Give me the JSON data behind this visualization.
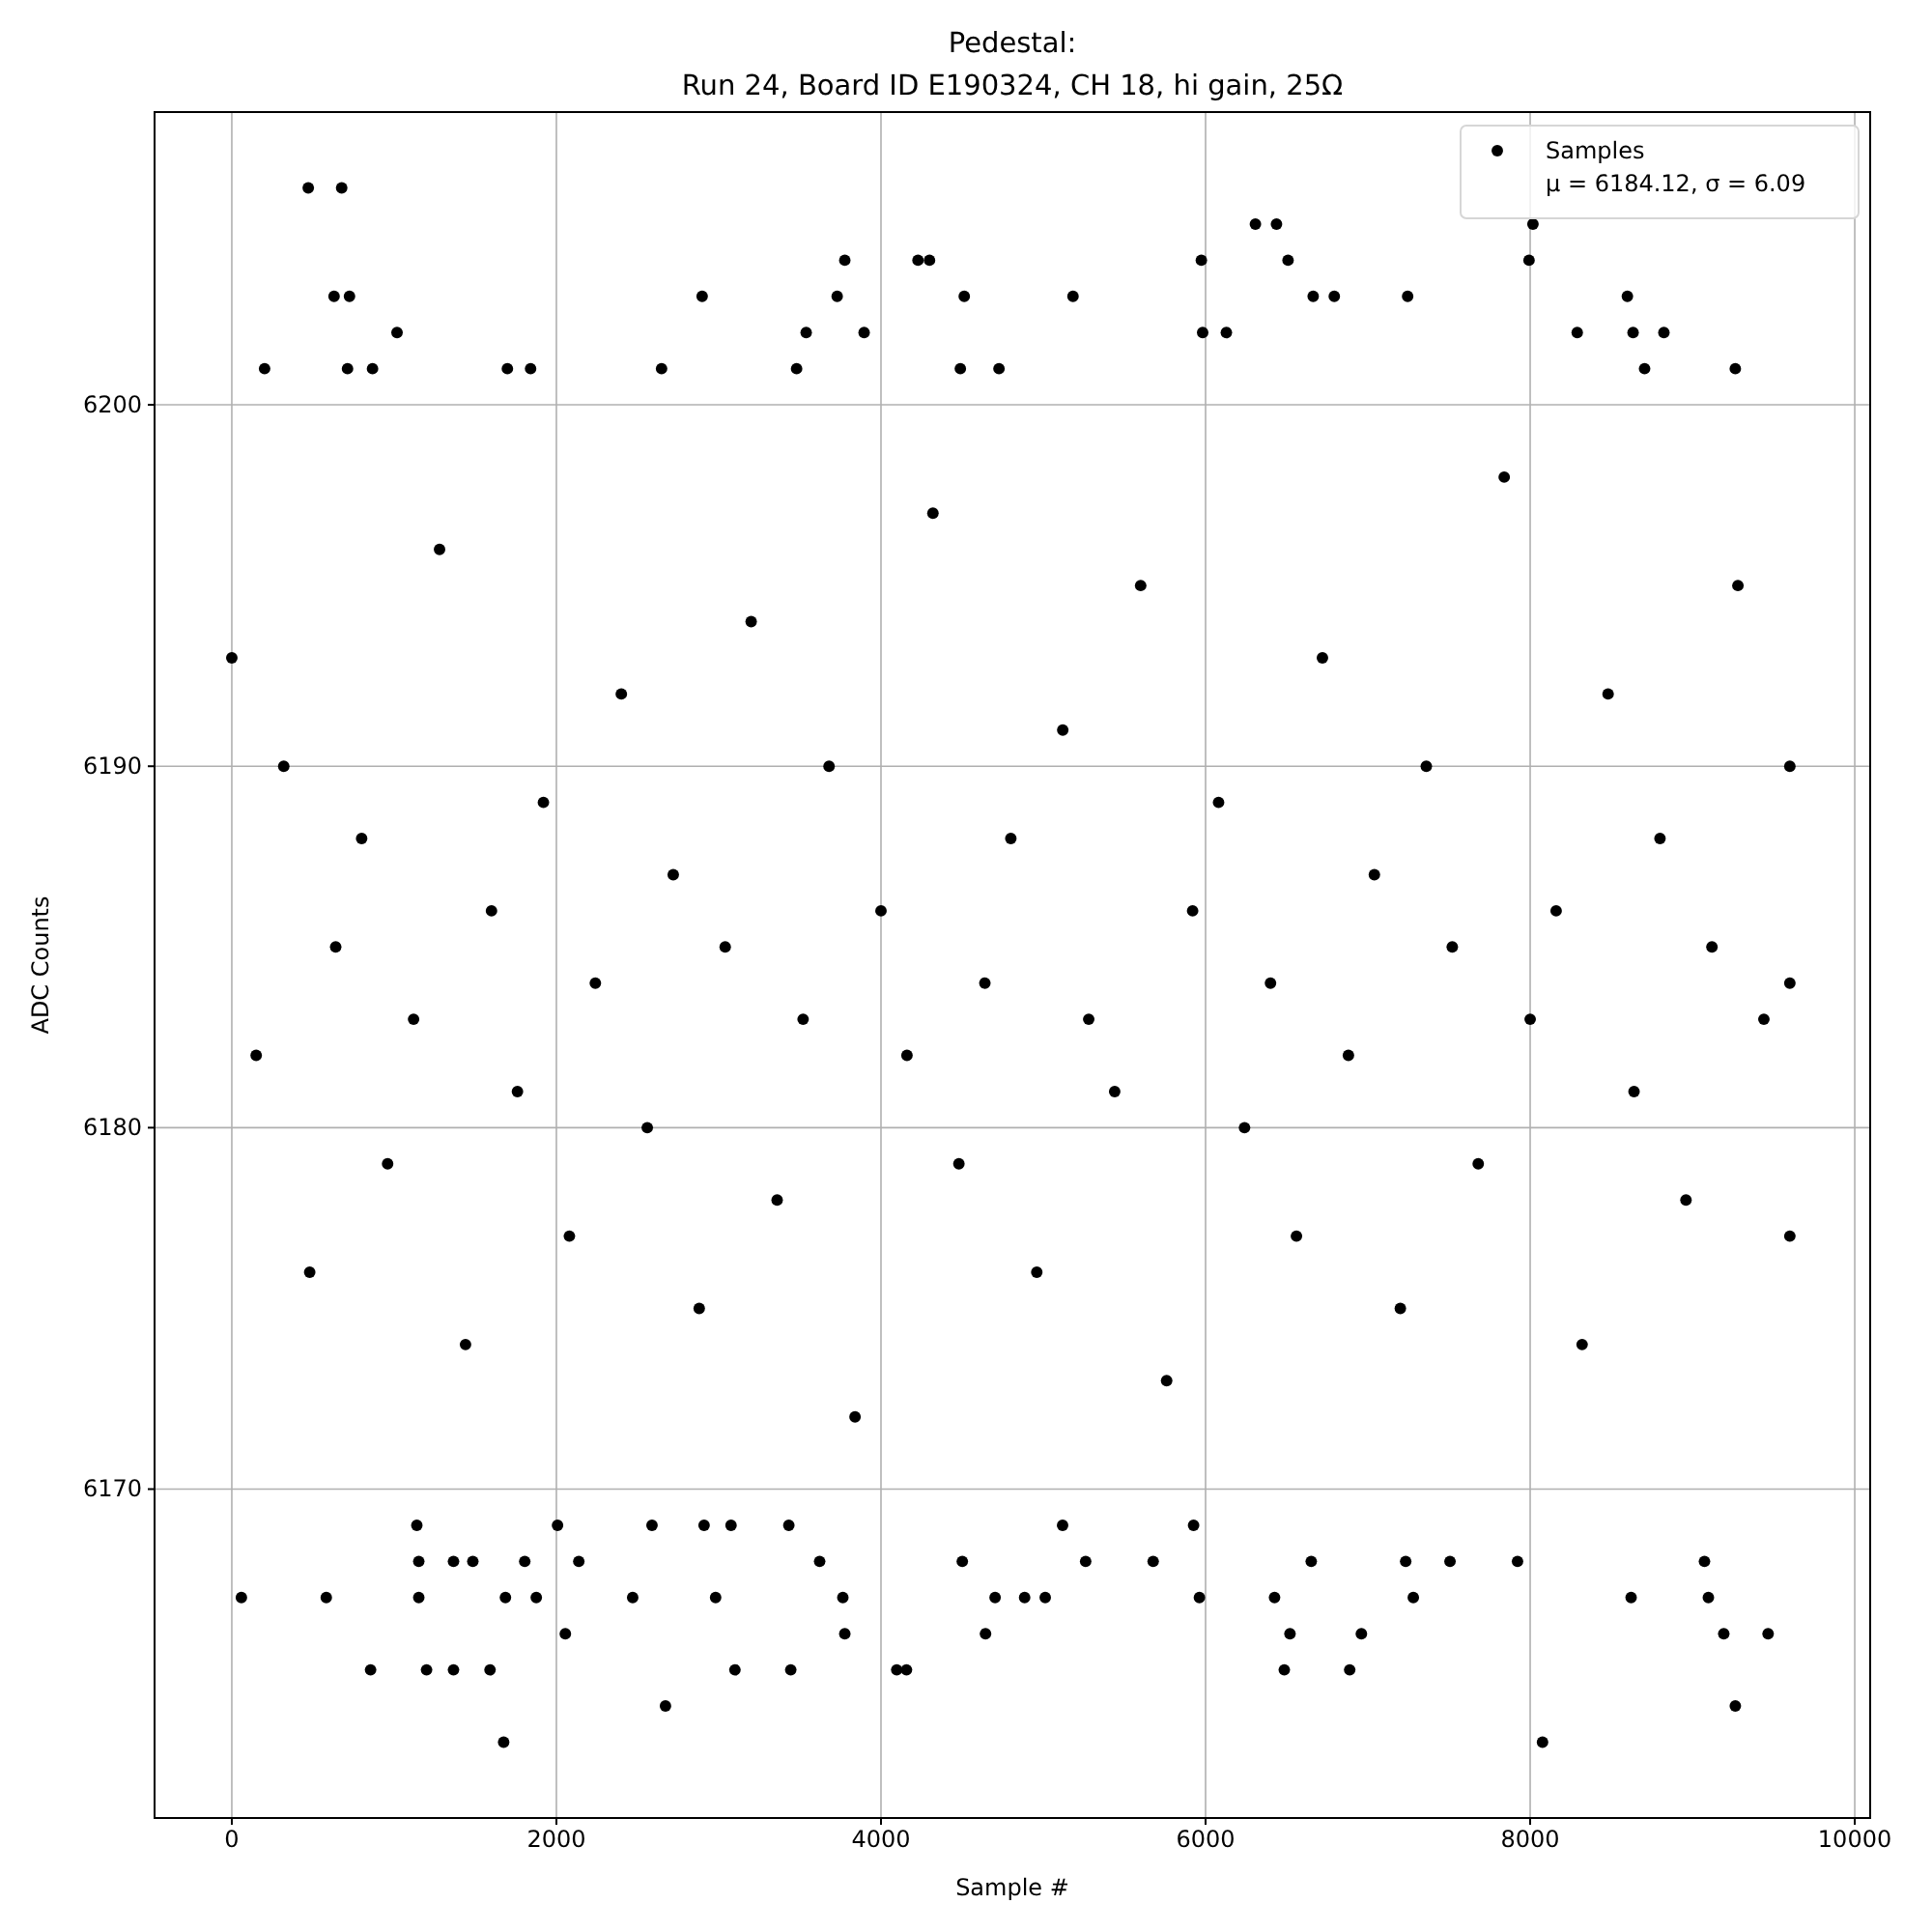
{
  "chart_data": {
    "type": "scatter",
    "title": "Pedestal:",
    "subtitle": "Run 24, Board ID E190324, CH 18, hi gain, 25Ω",
    "xlabel": "Sample #",
    "ylabel": "ADC Counts",
    "annotations": [
      "μ = 6184.12, σ = 6.09"
    ],
    "xlim": [
      -476,
      10095
    ],
    "ylim": [
      6160.9,
      6208.1
    ],
    "xticks": [
      0,
      2000,
      4000,
      6000,
      8000,
      10000
    ],
    "yticks": [
      6170,
      6180,
      6190,
      6200
    ],
    "grid": true,
    "legend": "top right",
    "marker": "circle",
    "series": [
      {
        "name": "Samples",
        "color": "#000000",
        "x": [
          471,
          677,
          630,
          725,
          2898,
          3730,
          3777,
          4228,
          4299,
          4513,
          1018,
          3539,
          3896,
          202,
          713,
          867,
          1698,
          1841,
          2648,
          3480,
          4489,
          4727,
          6307,
          6437,
          8017,
          5974,
          6508,
          7993,
          5183,
          6663,
          6793,
          7245,
          8599,
          5982,
          6128,
          8290,
          8634,
          8824,
          8705,
          9264,
          1140,
          2007,
          2589,
          2910,
          3076,
          3432,
          1152,
          1366,
          1485,
          1805,
          2138,
          3622,
          4501,
          59,
          582,
          1152,
          1686,
          1876,
          2470,
          2981,
          3765,
          4703,
          2055,
          3777,
          4644,
          855,
          1200,
          1366,
          1591,
          3100,
          3444,
          4097,
          4157,
          2672,
          1675,
          5119,
          5926,
          5261,
          5677,
          6651,
          7233,
          7506,
          7922,
          9074,
          4885,
          5012,
          5962,
          6425,
          7280,
          8622,
          9098,
          6520,
          6960,
          9193,
          9466,
          6485,
          6888,
          9264,
          8076,
          0,
          150,
          320,
          480,
          640,
          800,
          960,
          1120,
          1280,
          1440,
          1600,
          1760,
          1920,
          2080,
          2240,
          2400,
          2560,
          2720,
          2880,
          3040,
          3200,
          3360,
          3520,
          3680,
          3840,
          4000,
          4160,
          4320,
          4480,
          4640,
          4800,
          4960,
          5120,
          5280,
          5440,
          5600,
          5760,
          5920,
          6080,
          6240,
          6400,
          6560,
          6720,
          6880,
          7040,
          7200,
          7360,
          7520,
          7680,
          7840,
          8000,
          8160,
          8320,
          8480,
          8640,
          8800,
          8960,
          9120,
          9280,
          9440,
          9600,
          9600,
          9600
        ],
        "values": [
          6206,
          6206,
          6203,
          6203,
          6203,
          6203,
          6204,
          6204,
          6204,
          6203,
          6202,
          6202,
          6202,
          6201,
          6201,
          6201,
          6201,
          6201,
          6201,
          6201,
          6201,
          6201,
          6205,
          6205,
          6205,
          6204,
          6204,
          6204,
          6203,
          6203,
          6203,
          6203,
          6203,
          6202,
          6202,
          6202,
          6202,
          6202,
          6201,
          6201,
          6169,
          6169,
          6169,
          6169,
          6169,
          6169,
          6168,
          6168,
          6168,
          6168,
          6168,
          6168,
          6168,
          6167,
          6167,
          6167,
          6167,
          6167,
          6167,
          6167,
          6167,
          6167,
          6166,
          6166,
          6166,
          6165,
          6165,
          6165,
          6165,
          6165,
          6165,
          6165,
          6165,
          6164,
          6163,
          6169,
          6169,
          6168,
          6168,
          6168,
          6168,
          6168,
          6168,
          6168,
          6167,
          6167,
          6167,
          6167,
          6167,
          6167,
          6167,
          6166,
          6166,
          6166,
          6166,
          6165,
          6165,
          6164,
          6163,
          6193,
          6182,
          6190,
          6176,
          6185,
          6188,
          6179,
          6183,
          6196,
          6174,
          6186,
          6181,
          6189,
          6177,
          6184,
          6192,
          6180,
          6187,
          6175,
          6185,
          6194,
          6178,
          6183,
          6190,
          6172,
          6186,
          6182,
          6197,
          6179,
          6184,
          6188,
          6176,
          6191,
          6183,
          6181,
          6195,
          6173,
          6186,
          6189,
          6180,
          6184,
          6177,
          6193,
          6182,
          6187,
          6175,
          6190,
          6185,
          6179,
          6198,
          6183,
          6186,
          6174,
          6192,
          6181,
          6188,
          6178,
          6185,
          6195,
          6183,
          6190,
          6177,
          6184
        ]
      }
    ]
  }
}
